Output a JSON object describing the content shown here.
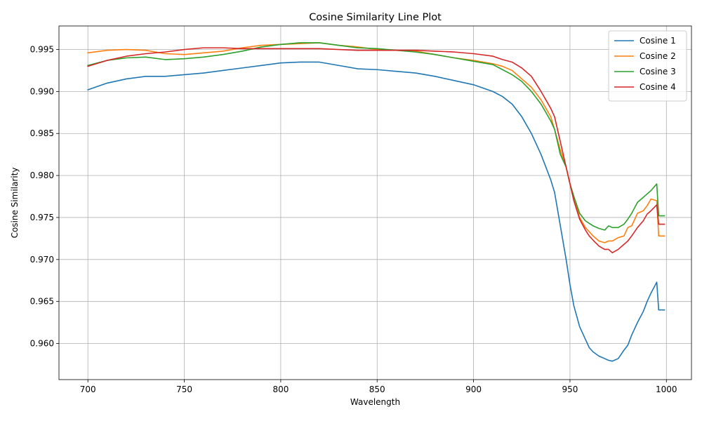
{
  "chart_data": {
    "type": "line",
    "title": "Cosine Similarity Line Plot",
    "xlabel": "Wavelength",
    "ylabel": "Cosine Similarity",
    "xlim": [
      685,
      1013
    ],
    "ylim": [
      0.9557,
      0.9978
    ],
    "xticks": [
      700,
      750,
      800,
      850,
      900,
      950,
      1000
    ],
    "yticks": [
      0.96,
      0.965,
      0.97,
      0.975,
      0.98,
      0.985,
      0.99,
      0.995
    ],
    "ytick_labels": [
      "0.960",
      "0.965",
      "0.970",
      "0.975",
      "0.980",
      "0.985",
      "0.990",
      "0.995"
    ],
    "grid": true,
    "legend": "top-right",
    "x": [
      700,
      710,
      720,
      730,
      740,
      750,
      760,
      770,
      780,
      790,
      800,
      810,
      820,
      830,
      840,
      850,
      860,
      870,
      880,
      890,
      900,
      910,
      915,
      920,
      925,
      930,
      935,
      940,
      942,
      945,
      948,
      950,
      952,
      955,
      958,
      960,
      962,
      965,
      968,
      970,
      972,
      975,
      978,
      980,
      982,
      985,
      988,
      990,
      992,
      995,
      996,
      998,
      999
    ],
    "series": [
      {
        "name": "Cosine 1",
        "color": "#1f77b4",
        "values": [
          0.9902,
          0.991,
          0.9915,
          0.9918,
          0.9918,
          0.992,
          0.9922,
          0.9925,
          0.9928,
          0.9931,
          0.9934,
          0.9935,
          0.9935,
          0.9931,
          0.9927,
          0.9926,
          0.9924,
          0.9922,
          0.9918,
          0.9913,
          0.9908,
          0.99,
          0.9894,
          0.9885,
          0.987,
          0.985,
          0.9825,
          0.9795,
          0.978,
          0.974,
          0.97,
          0.967,
          0.9645,
          0.962,
          0.9605,
          0.9595,
          0.959,
          0.9585,
          0.9582,
          0.958,
          0.9579,
          0.9582,
          0.9592,
          0.9598,
          0.961,
          0.9625,
          0.9638,
          0.965,
          0.966,
          0.9673,
          0.964,
          0.964,
          0.964
        ]
      },
      {
        "name": "Cosine 2",
        "color": "#ff7f0e",
        "values": [
          0.9946,
          0.9949,
          0.995,
          0.9949,
          0.9945,
          0.9944,
          0.9946,
          0.9948,
          0.9952,
          0.9955,
          0.9956,
          0.9957,
          0.9958,
          0.9955,
          0.9953,
          0.995,
          0.9949,
          0.9948,
          0.9944,
          0.994,
          0.9937,
          0.9933,
          0.993,
          0.9925,
          0.9915,
          0.9905,
          0.989,
          0.987,
          0.9855,
          0.983,
          0.981,
          0.979,
          0.9775,
          0.975,
          0.9738,
          0.9733,
          0.9728,
          0.9722,
          0.972,
          0.9722,
          0.9722,
          0.9726,
          0.9728,
          0.9738,
          0.974,
          0.9755,
          0.9758,
          0.9764,
          0.9772,
          0.977,
          0.9728,
          0.9728,
          0.9728
        ]
      },
      {
        "name": "Cosine 3",
        "color": "#2ca02c",
        "values": [
          0.9931,
          0.9937,
          0.994,
          0.9941,
          0.9938,
          0.9939,
          0.9941,
          0.9944,
          0.9948,
          0.9953,
          0.9956,
          0.9958,
          0.9958,
          0.9955,
          0.9952,
          0.9951,
          0.9949,
          0.9947,
          0.9944,
          0.994,
          0.9936,
          0.9932,
          0.9926,
          0.992,
          0.9912,
          0.99,
          0.9885,
          0.9865,
          0.9855,
          0.9825,
          0.981,
          0.979,
          0.9775,
          0.9755,
          0.9746,
          0.9743,
          0.974,
          0.9737,
          0.9735,
          0.974,
          0.9738,
          0.9738,
          0.9742,
          0.9748,
          0.9755,
          0.9768,
          0.9774,
          0.9778,
          0.9782,
          0.979,
          0.9752,
          0.9752,
          0.9752
        ]
      },
      {
        "name": "Cosine 4",
        "color": "#d62728",
        "values": [
          0.993,
          0.9937,
          0.9942,
          0.9945,
          0.9947,
          0.995,
          0.9952,
          0.9952,
          0.9951,
          0.9951,
          0.9951,
          0.9951,
          0.9951,
          0.995,
          0.9949,
          0.9949,
          0.9949,
          0.9949,
          0.9948,
          0.9947,
          0.9945,
          0.9942,
          0.9938,
          0.9935,
          0.9928,
          0.9918,
          0.99,
          0.988,
          0.987,
          0.984,
          0.981,
          0.979,
          0.977,
          0.9748,
          0.9735,
          0.9728,
          0.9723,
          0.9716,
          0.9712,
          0.9712,
          0.9708,
          0.9712,
          0.9718,
          0.9722,
          0.9728,
          0.9738,
          0.9746,
          0.9754,
          0.9758,
          0.9765,
          0.9742,
          0.9742,
          0.9742
        ]
      }
    ]
  }
}
